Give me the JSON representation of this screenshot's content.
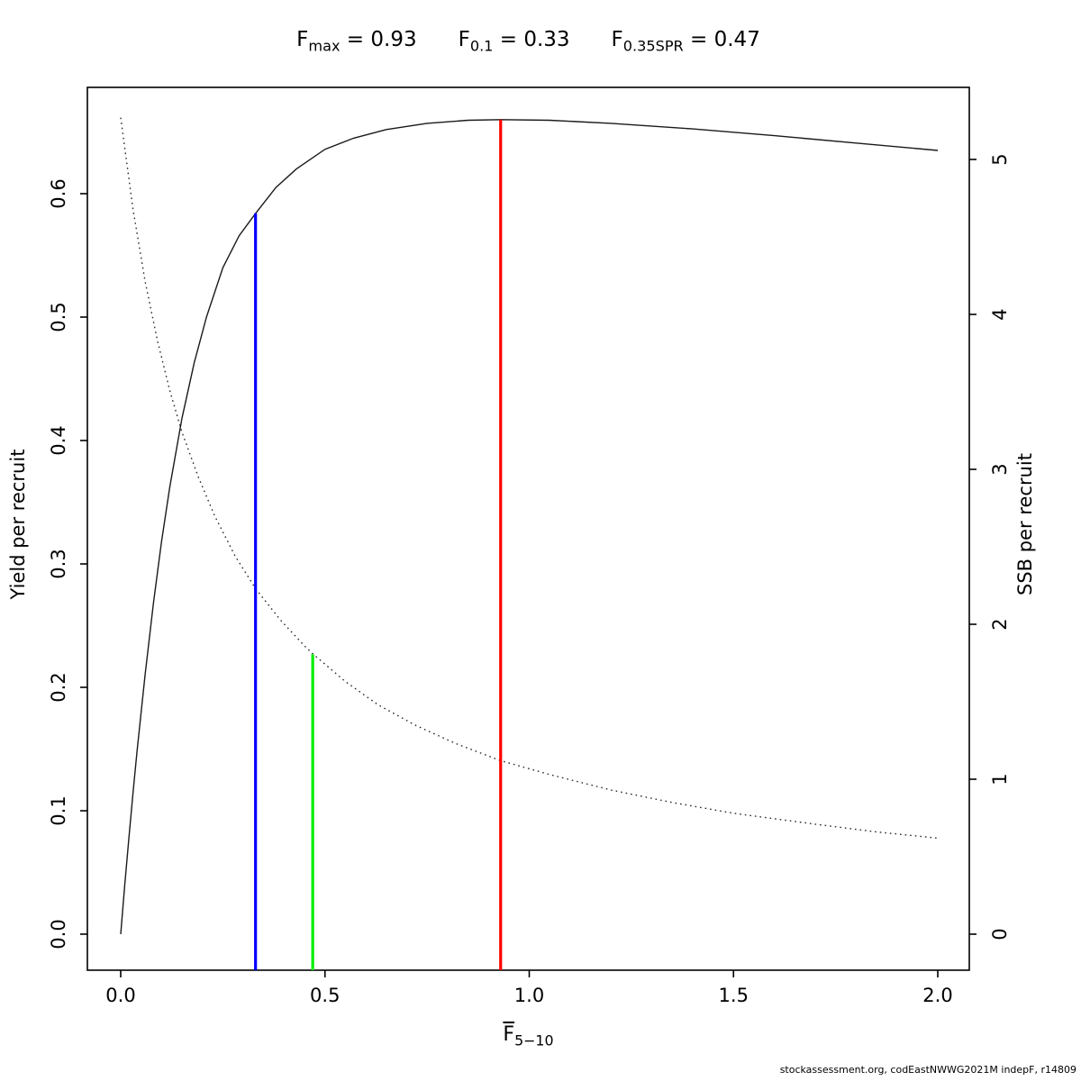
{
  "title": {
    "items": [
      {
        "symbol": "F",
        "subscript": "max",
        "text": "= 0.93"
      },
      {
        "symbol": "F",
        "subscript": "0.1",
        "text": "= 0.33"
      },
      {
        "symbol": "F",
        "subscript": "0.35SPR",
        "text": "= 0.47"
      }
    ]
  },
  "axes": {
    "x": {
      "symbol": "F",
      "subscript": "5−10",
      "ticks": [
        {
          "v": 0.0,
          "label": "0.0"
        },
        {
          "v": 0.5,
          "label": "0.5"
        },
        {
          "v": 1.0,
          "label": "1.0"
        },
        {
          "v": 1.5,
          "label": "1.5"
        },
        {
          "v": 2.0,
          "label": "2.0"
        }
      ]
    },
    "y_left": {
      "label": "Yield per recruit",
      "ticks": [
        {
          "v": 0.0,
          "label": "0.0"
        },
        {
          "v": 0.1,
          "label": "0.1"
        },
        {
          "v": 0.2,
          "label": "0.2"
        },
        {
          "v": 0.3,
          "label": "0.3"
        },
        {
          "v": 0.4,
          "label": "0.4"
        },
        {
          "v": 0.5,
          "label": "0.5"
        },
        {
          "v": 0.6,
          "label": "0.6"
        }
      ]
    },
    "y_right": {
      "label": "SSB per recruit",
      "ticks": [
        {
          "v": 0,
          "label": "0"
        },
        {
          "v": 1,
          "label": "1"
        },
        {
          "v": 2,
          "label": "2"
        },
        {
          "v": 3,
          "label": "3"
        },
        {
          "v": 4,
          "label": "4"
        },
        {
          "v": 5,
          "label": "5"
        }
      ]
    }
  },
  "footer": "stockassessment.org, codEastNWWG2021M indepF, r14809",
  "chart_data": {
    "type": "line",
    "title": "Fmax = 0.93   F0.1 = 0.33   F0.35SPR = 0.47",
    "xlabel": "F(bar) 5−10",
    "ylabel_left": "Yield per recruit",
    "ylabel_right": "SSB per recruit",
    "xlim": [
      0,
      2.0
    ],
    "ylim_left": [
      0.0,
      0.66
    ],
    "ylim_right": [
      0,
      5.3
    ],
    "grid": false,
    "legend": "none",
    "series": [
      {
        "name": "Yield per recruit",
        "axis": "left",
        "style": "solid",
        "color": "#1a1a1a",
        "points": [
          [
            0.0,
            0.0
          ],
          [
            0.01,
            0.04
          ],
          [
            0.02,
            0.078
          ],
          [
            0.03,
            0.114
          ],
          [
            0.04,
            0.148
          ],
          [
            0.05,
            0.18
          ],
          [
            0.06,
            0.211
          ],
          [
            0.08,
            0.268
          ],
          [
            0.1,
            0.318
          ],
          [
            0.12,
            0.362
          ],
          [
            0.15,
            0.418
          ],
          [
            0.18,
            0.463
          ],
          [
            0.21,
            0.5
          ],
          [
            0.25,
            0.54
          ],
          [
            0.29,
            0.566
          ],
          [
            0.33,
            0.584
          ],
          [
            0.38,
            0.605
          ],
          [
            0.43,
            0.62
          ],
          [
            0.5,
            0.636
          ],
          [
            0.57,
            0.645
          ],
          [
            0.65,
            0.652
          ],
          [
            0.75,
            0.657
          ],
          [
            0.85,
            0.6595
          ],
          [
            0.93,
            0.66
          ],
          [
            1.05,
            0.6595
          ],
          [
            1.2,
            0.657
          ],
          [
            1.4,
            0.6525
          ],
          [
            1.6,
            0.647
          ],
          [
            1.8,
            0.641
          ],
          [
            2.0,
            0.635
          ]
        ]
      },
      {
        "name": "SSB per recruit",
        "axis": "right",
        "style": "dotted",
        "color": "#2a2a2a",
        "points": [
          [
            0.0,
            5.27
          ],
          [
            0.03,
            4.68
          ],
          [
            0.06,
            4.21
          ],
          [
            0.09,
            3.83
          ],
          [
            0.12,
            3.51
          ],
          [
            0.15,
            3.24
          ],
          [
            0.19,
            2.95
          ],
          [
            0.23,
            2.7
          ],
          [
            0.28,
            2.44
          ],
          [
            0.33,
            2.23
          ],
          [
            0.39,
            2.03
          ],
          [
            0.45,
            1.86
          ],
          [
            0.47,
            1.81
          ],
          [
            0.55,
            1.63
          ],
          [
            0.63,
            1.48
          ],
          [
            0.72,
            1.35
          ],
          [
            0.82,
            1.23
          ],
          [
            0.93,
            1.12
          ],
          [
            1.05,
            1.03
          ],
          [
            1.2,
            0.93
          ],
          [
            1.35,
            0.85
          ],
          [
            1.5,
            0.78
          ],
          [
            1.7,
            0.71
          ],
          [
            1.85,
            0.66
          ],
          [
            2.0,
            0.62
          ]
        ]
      }
    ],
    "reference_lines": [
      {
        "name": "F0.1",
        "x": 0.33,
        "color": "#0000ff",
        "top_axis": "left",
        "top_value": 0.584
      },
      {
        "name": "F0.35SPR",
        "x": 0.47,
        "color": "#00ee00",
        "top_axis": "right",
        "top_value": 1.806
      },
      {
        "name": "Fmax",
        "x": 0.93,
        "color": "#ff0000",
        "top_axis": "left",
        "top_value": 0.66
      }
    ]
  }
}
